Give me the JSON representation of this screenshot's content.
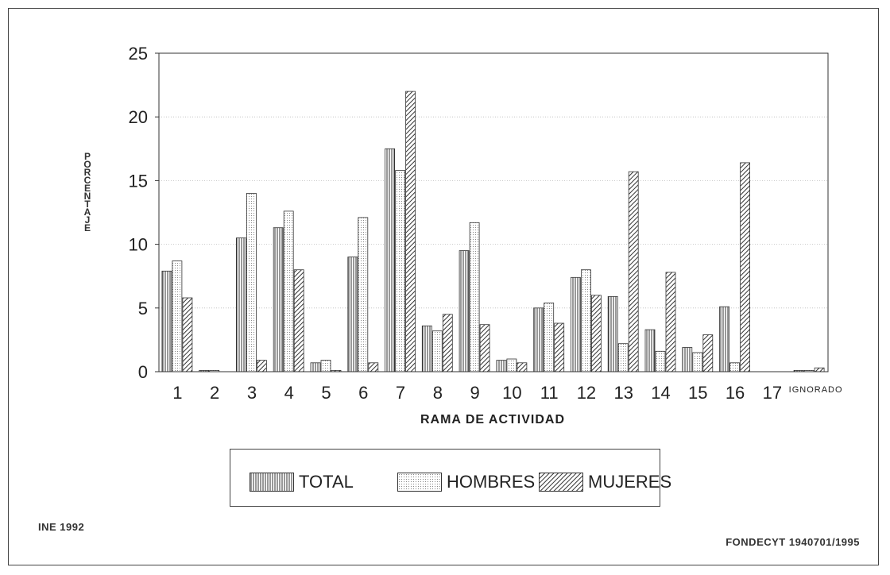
{
  "chart_data": {
    "type": "bar",
    "xlabel": "RAMA DE ACTIVIDAD",
    "ylabel": "PORCENTAJE",
    "ylim": [
      0,
      25
    ],
    "yticks": [
      "0",
      "5",
      "10",
      "15",
      "20",
      "25"
    ],
    "grid": true,
    "legend_position": "bottom",
    "categories": [
      "1",
      "2",
      "3",
      "4",
      "5",
      "6",
      "7",
      "8",
      "9",
      "10",
      "11",
      "12",
      "13",
      "14",
      "15",
      "16",
      "17",
      "IGNORADO"
    ],
    "series": [
      {
        "name": "TOTAL",
        "pattern": "vertical-lines",
        "values": [
          7.9,
          0.1,
          10.5,
          11.3,
          0.7,
          9.0,
          17.5,
          3.6,
          9.5,
          0.9,
          5.0,
          7.4,
          5.9,
          3.3,
          1.9,
          5.1,
          0.0,
          0.1
        ]
      },
      {
        "name": "HOMBRES",
        "pattern": "dots",
        "values": [
          8.7,
          0.1,
          14.0,
          12.6,
          0.9,
          12.1,
          15.8,
          3.2,
          11.7,
          1.0,
          5.4,
          8.0,
          2.2,
          1.6,
          1.5,
          0.7,
          0.0,
          0.1
        ]
      },
      {
        "name": "MUJERES",
        "pattern": "diagonal-hatch",
        "values": [
          5.8,
          0.0,
          0.9,
          8.0,
          0.1,
          0.7,
          22.0,
          4.5,
          3.7,
          0.7,
          3.8,
          6.0,
          15.7,
          7.8,
          2.9,
          16.4,
          0.0,
          0.3
        ]
      }
    ]
  },
  "footer": {
    "source_left": "INE 1992",
    "source_right": "FONDECYT 1940701/1995"
  }
}
